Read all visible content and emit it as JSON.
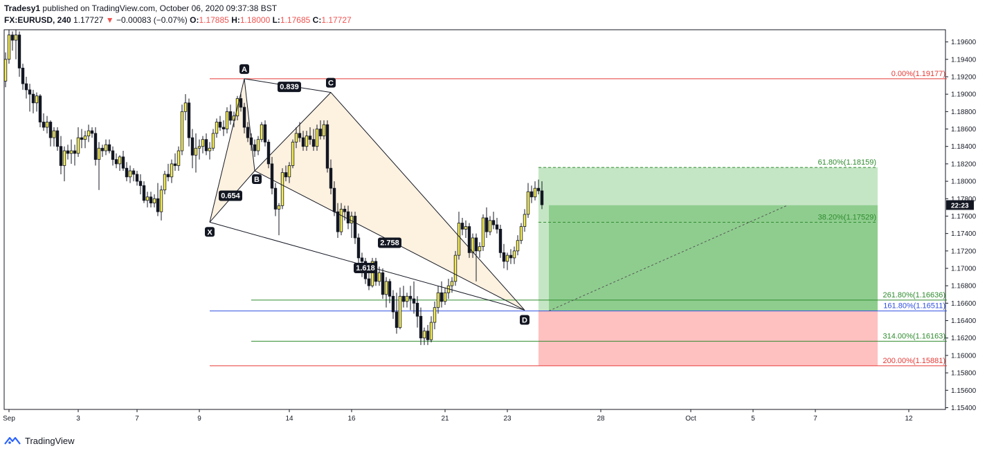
{
  "header": {
    "publisher": "Tradesy1",
    "published_text": "published on TradingView.com, October 06, 2020 09:37:38 BST",
    "symbol": "FX:EURUSD, 240",
    "last": "1.17727",
    "change": "−0.00083 (−0.07%)",
    "o_label": "O:",
    "o": "1.17885",
    "h_label": "H:",
    "h": "1.18000",
    "l_label": "L:",
    "l": "1.17685",
    "c_label": "C:",
    "c": "1.17727"
  },
  "footer": {
    "brand": "TradingView"
  },
  "colors": {
    "bull": "#f6ee55",
    "bear": "#131722",
    "pattern_fill": "#fdf1e0",
    "profit": "#8fcd8f",
    "profit_light": "#c5e6c5",
    "loss": "#ffc0c0",
    "fib_red": "#e53935",
    "fib_green": "#2e8b2e",
    "fib_blue": "#3050e0"
  },
  "chart_data": {
    "type": "candlestick",
    "ylim": [
      1.1538,
      1.1974
    ],
    "y_ticks": [
      "1.19600",
      "1.19400",
      "1.19200",
      "1.19000",
      "1.18800",
      "1.18600",
      "1.18400",
      "1.18200",
      "1.18000",
      "1.17800",
      "1.17600",
      "1.17400",
      "1.17200",
      "1.17000",
      "1.16800",
      "1.16600",
      "1.16400",
      "1.16200",
      "1.16000",
      "1.15800",
      "1.15600",
      "1.15400"
    ],
    "x_ticks": [
      {
        "label": "Sep",
        "bar": 1
      },
      {
        "label": "3",
        "bar": 21
      },
      {
        "label": "7",
        "bar": 38
      },
      {
        "label": "9",
        "bar": 56
      },
      {
        "label": "14",
        "bar": 82
      },
      {
        "label": "16",
        "bar": 100
      },
      {
        "label": "21",
        "bar": 127
      },
      {
        "label": "23",
        "bar": 145
      },
      {
        "label": "28",
        "bar": 172
      },
      {
        "label": "Oct",
        "bar": 198
      },
      {
        "label": "5",
        "bar": 216
      },
      {
        "label": "7",
        "bar": 234
      },
      {
        "label": "12",
        "bar": 261
      }
    ],
    "current_price_label": "22:23",
    "current_price": 1.17727,
    "fib_levels": [
      {
        "label": "0.00%(1.19177)",
        "price": 1.19177,
        "color": "red",
        "x0": 59,
        "x1": 272,
        "style": "solid"
      },
      {
        "label": "61.80%(1.18159)",
        "price": 1.18159,
        "color": "green",
        "x0": 154,
        "x1": 252,
        "style": "dashed"
      },
      {
        "label": "38.20%(1.17529)",
        "price": 1.17529,
        "color": "green",
        "x0": 154,
        "x1": 252,
        "style": "dashed"
      },
      {
        "label": "261.80%(1.16636)",
        "price": 1.16636,
        "color": "green",
        "x0": 71,
        "x1": 272,
        "style": "solid"
      },
      {
        "label": "161.80%(1.16511)",
        "price": 1.16511,
        "color": "blue",
        "x0": 59,
        "x1": 272,
        "style": "solid"
      },
      {
        "label": "314.00%(1.16163)",
        "price": 1.16163,
        "color": "green",
        "x0": 71,
        "x1": 272,
        "style": "solid"
      },
      {
        "label": "200.00%(1.15881)",
        "price": 1.15881,
        "color": "red",
        "x0": 59,
        "x1": 272,
        "style": "solid"
      }
    ],
    "position": {
      "x0": 154,
      "x1": 252,
      "entry": 1.16511,
      "target": 1.18159,
      "stop": 1.15881,
      "mid": 1.17725,
      "entry_bar": 157
    },
    "pattern_points": [
      {
        "label": "X",
        "bar": 59,
        "price": 1.1753
      },
      {
        "label": "A",
        "bar": 69,
        "price": 1.19177
      },
      {
        "label": "B",
        "bar": 72,
        "price": 1.1812
      },
      {
        "label": "C",
        "bar": 94,
        "price": 1.1902
      },
      {
        "label": "D",
        "bar": 150,
        "price": 1.1652
      }
    ],
    "ratios": [
      {
        "label": "0.839",
        "bar": 82,
        "price": 1.1908
      },
      {
        "label": "0.654",
        "bar": 65,
        "price": 1.1783
      },
      {
        "label": "2.758",
        "bar": 111,
        "price": 1.1729
      },
      {
        "label": "1.618",
        "bar": 104,
        "price": 1.17
      }
    ],
    "candles": [
      [
        1.1915,
        1.1948,
        1.1908,
        1.194
      ],
      [
        1.194,
        1.1974,
        1.1935,
        1.1968
      ],
      [
        1.1968,
        1.1972,
        1.195,
        1.1962
      ],
      [
        1.1962,
        1.1974,
        1.194,
        1.1968
      ],
      [
        1.1968,
        1.1972,
        1.192,
        1.193
      ],
      [
        1.193,
        1.1935,
        1.1905,
        1.1912
      ],
      [
        1.1912,
        1.192,
        1.1895,
        1.1905
      ],
      [
        1.1905,
        1.1912,
        1.188,
        1.19
      ],
      [
        1.19,
        1.1905,
        1.1878,
        1.189
      ],
      [
        1.189,
        1.1902,
        1.188,
        1.1898
      ],
      [
        1.1898,
        1.19,
        1.1862,
        1.1868
      ],
      [
        1.1868,
        1.1878,
        1.1858,
        1.1862
      ],
      [
        1.1862,
        1.1875,
        1.1855,
        1.1868
      ],
      [
        1.1868,
        1.187,
        1.184,
        1.185
      ],
      [
        1.185,
        1.1862,
        1.184,
        1.1858
      ],
      [
        1.1858,
        1.1862,
        1.1835,
        1.184
      ],
      [
        1.184,
        1.1852,
        1.1808,
        1.1818
      ],
      [
        1.1818,
        1.184,
        1.18,
        1.1835
      ],
      [
        1.1835,
        1.1842,
        1.1825,
        1.1832
      ],
      [
        1.1832,
        1.1848,
        1.182,
        1.1835
      ],
      [
        1.1835,
        1.1842,
        1.1818,
        1.1832
      ],
      [
        1.1832,
        1.1862,
        1.1828,
        1.185
      ],
      [
        1.185,
        1.186,
        1.1838,
        1.1848
      ],
      [
        1.1848,
        1.1858,
        1.1838,
        1.1852
      ],
      [
        1.1852,
        1.1865,
        1.1845,
        1.1858
      ],
      [
        1.1858,
        1.1862,
        1.185,
        1.1855
      ],
      [
        1.1855,
        1.1862,
        1.1818,
        1.1825
      ],
      [
        1.1825,
        1.1845,
        1.179,
        1.1838
      ],
      [
        1.1838,
        1.1842,
        1.1828,
        1.1835
      ],
      [
        1.1835,
        1.1848,
        1.183,
        1.1842
      ],
      [
        1.1842,
        1.1848,
        1.1832,
        1.1835
      ],
      [
        1.1835,
        1.184,
        1.1818,
        1.1825
      ],
      [
        1.1825,
        1.1832,
        1.1815,
        1.182
      ],
      [
        1.182,
        1.183,
        1.1812,
        1.1828
      ],
      [
        1.1828,
        1.1835,
        1.1812,
        1.1815
      ],
      [
        1.1815,
        1.1822,
        1.18,
        1.1805
      ],
      [
        1.1805,
        1.1818,
        1.1798,
        1.1812
      ],
      [
        1.1812,
        1.1815,
        1.18,
        1.1808
      ],
      [
        1.1808,
        1.1812,
        1.1795,
        1.18
      ],
      [
        1.18,
        1.1808,
        1.1785,
        1.1795
      ],
      [
        1.1795,
        1.18,
        1.1775,
        1.1778
      ],
      [
        1.1778,
        1.1788,
        1.177,
        1.1782
      ],
      [
        1.1782,
        1.1788,
        1.177,
        1.1775
      ],
      [
        1.1775,
        1.1785,
        1.177,
        1.178
      ],
      [
        1.178,
        1.1798,
        1.176,
        1.1765
      ],
      [
        1.1765,
        1.1795,
        1.1755,
        1.179
      ],
      [
        1.179,
        1.1812,
        1.1785,
        1.1808
      ],
      [
        1.1808,
        1.182,
        1.18,
        1.1805
      ],
      [
        1.1805,
        1.1825,
        1.1798,
        1.182
      ],
      [
        1.182,
        1.1832,
        1.1812,
        1.1818
      ],
      [
        1.1818,
        1.184,
        1.1812,
        1.1835
      ],
      [
        1.1835,
        1.1888,
        1.183,
        1.188
      ],
      [
        1.188,
        1.19,
        1.187,
        1.189
      ],
      [
        1.189,
        1.1895,
        1.184,
        1.185
      ],
      [
        1.185,
        1.186,
        1.1815,
        1.183
      ],
      [
        1.183,
        1.1855,
        1.181,
        1.1838
      ],
      [
        1.1838,
        1.1848,
        1.1825,
        1.184
      ],
      [
        1.184,
        1.1852,
        1.1832,
        1.1848
      ],
      [
        1.1848,
        1.1855,
        1.183,
        1.1835
      ],
      [
        1.1835,
        1.1845,
        1.1825,
        1.1838
      ],
      [
        1.1838,
        1.186,
        1.1835,
        1.1855
      ],
      [
        1.1855,
        1.1872,
        1.185,
        1.1868
      ],
      [
        1.1868,
        1.1875,
        1.1858,
        1.1862
      ],
      [
        1.1862,
        1.187,
        1.1852,
        1.186
      ],
      [
        1.186,
        1.1885,
        1.1855,
        1.188
      ],
      [
        1.188,
        1.1888,
        1.1865,
        1.187
      ],
      [
        1.187,
        1.188,
        1.1862,
        1.1875
      ],
      [
        1.1875,
        1.1898,
        1.187,
        1.1895
      ],
      [
        1.1895,
        1.1902,
        1.188,
        1.1885
      ],
      [
        1.1885,
        1.189,
        1.1855,
        1.1862
      ],
      [
        1.1862,
        1.1868,
        1.1845,
        1.185
      ],
      [
        1.185,
        1.1855,
        1.1835,
        1.1842
      ],
      [
        1.1842,
        1.1848,
        1.1828,
        1.1835
      ],
      [
        1.1835,
        1.1852,
        1.183,
        1.1848
      ],
      [
        1.1848,
        1.1868,
        1.1845,
        1.1865
      ],
      [
        1.1865,
        1.187,
        1.184,
        1.1845
      ],
      [
        1.1845,
        1.1848,
        1.1815,
        1.182
      ],
      [
        1.182,
        1.1828,
        1.1785,
        1.1792
      ],
      [
        1.1792,
        1.1798,
        1.176,
        1.1768
      ],
      [
        1.1768,
        1.1775,
        1.1738,
        1.1772
      ],
      [
        1.1772,
        1.1815,
        1.1768,
        1.181
      ],
      [
        1.181,
        1.1818,
        1.18,
        1.1805
      ],
      [
        1.1805,
        1.1822,
        1.1798,
        1.1818
      ],
      [
        1.1818,
        1.1848,
        1.1815,
        1.1845
      ],
      [
        1.1845,
        1.1862,
        1.1838,
        1.1855
      ],
      [
        1.1855,
        1.1868,
        1.1845,
        1.185
      ],
      [
        1.185,
        1.1858,
        1.1835,
        1.184
      ],
      [
        1.184,
        1.1858,
        1.1835,
        1.1852
      ],
      [
        1.1852,
        1.1862,
        1.1842,
        1.1848
      ],
      [
        1.1848,
        1.186,
        1.1835,
        1.184
      ],
      [
        1.184,
        1.1865,
        1.1835,
        1.186
      ],
      [
        1.186,
        1.187,
        1.1848,
        1.1852
      ],
      [
        1.1852,
        1.187,
        1.1848,
        1.1865
      ],
      [
        1.1865,
        1.187,
        1.181,
        1.1815
      ],
      [
        1.1815,
        1.1825,
        1.1785,
        1.1792
      ],
      [
        1.1792,
        1.18,
        1.176,
        1.1765
      ],
      [
        1.1765,
        1.1775,
        1.1735,
        1.1742
      ],
      [
        1.1742,
        1.1775,
        1.1738,
        1.1768
      ],
      [
        1.1768,
        1.1772,
        1.1755,
        1.1765
      ],
      [
        1.1765,
        1.1772,
        1.1745,
        1.1752
      ],
      [
        1.1752,
        1.1765,
        1.1735,
        1.176
      ],
      [
        1.176,
        1.1765,
        1.1728,
        1.1735
      ],
      [
        1.1735,
        1.174,
        1.17,
        1.1712
      ],
      [
        1.1712,
        1.1718,
        1.169,
        1.1708
      ],
      [
        1.1708,
        1.1712,
        1.1682,
        1.1688
      ],
      [
        1.1688,
        1.1695,
        1.1675,
        1.168
      ],
      [
        1.168,
        1.1712,
        1.1678,
        1.1708
      ],
      [
        1.1708,
        1.1712,
        1.168,
        1.1685
      ],
      [
        1.1685,
        1.1702,
        1.168,
        1.1695
      ],
      [
        1.1695,
        1.17,
        1.1665,
        1.167
      ],
      [
        1.167,
        1.169,
        1.1655,
        1.1685
      ],
      [
        1.1685,
        1.1688,
        1.166,
        1.1668
      ],
      [
        1.1668,
        1.1675,
        1.1642,
        1.165
      ],
      [
        1.165,
        1.1672,
        1.1625,
        1.1632
      ],
      [
        1.1632,
        1.1678,
        1.163,
        1.1668
      ],
      [
        1.1668,
        1.168,
        1.1655,
        1.1662
      ],
      [
        1.1662,
        1.1672,
        1.1655,
        1.1668
      ],
      [
        1.1668,
        1.168,
        1.1652,
        1.1665
      ],
      [
        1.1665,
        1.1685,
        1.1648,
        1.166
      ],
      [
        1.166,
        1.1668,
        1.1632,
        1.1645
      ],
      [
        1.1645,
        1.1655,
        1.1612,
        1.162
      ],
      [
        1.162,
        1.1632,
        1.1612,
        1.1628
      ],
      [
        1.1628,
        1.1635,
        1.1612,
        1.1618
      ],
      [
        1.1618,
        1.1645,
        1.1615,
        1.1638
      ],
      [
        1.1638,
        1.1662,
        1.163,
        1.1655
      ],
      [
        1.1655,
        1.168,
        1.1648,
        1.1672
      ],
      [
        1.1672,
        1.1685,
        1.1655,
        1.1662
      ],
      [
        1.1662,
        1.1678,
        1.1658,
        1.1672
      ],
      [
        1.1672,
        1.1688,
        1.1665,
        1.168
      ],
      [
        1.168,
        1.169,
        1.1672,
        1.1685
      ],
      [
        1.1685,
        1.172,
        1.168,
        1.1715
      ],
      [
        1.1715,
        1.1765,
        1.171,
        1.1752
      ],
      [
        1.1752,
        1.1758,
        1.1738,
        1.1745
      ],
      [
        1.1745,
        1.1755,
        1.1735,
        1.1748
      ],
      [
        1.1748,
        1.1752,
        1.1712,
        1.1718
      ],
      [
        1.1718,
        1.174,
        1.1712,
        1.1735
      ],
      [
        1.1735,
        1.174,
        1.1685,
        1.172
      ],
      [
        1.172,
        1.173,
        1.1712,
        1.1725
      ],
      [
        1.1725,
        1.1762,
        1.172,
        1.1758
      ],
      [
        1.1758,
        1.177,
        1.1735,
        1.1742
      ],
      [
        1.1742,
        1.176,
        1.1738,
        1.1755
      ],
      [
        1.1755,
        1.1765,
        1.1745,
        1.175
      ],
      [
        1.175,
        1.1758,
        1.174,
        1.1745
      ],
      [
        1.1745,
        1.175,
        1.1712,
        1.1718
      ],
      [
        1.1718,
        1.1728,
        1.17,
        1.1708
      ],
      [
        1.1708,
        1.1718,
        1.1698,
        1.1715
      ],
      [
        1.1715,
        1.1722,
        1.1705,
        1.1712
      ],
      [
        1.1712,
        1.1725,
        1.1705,
        1.172
      ],
      [
        1.172,
        1.1738,
        1.1715,
        1.1732
      ],
      [
        1.1732,
        1.1752,
        1.1728,
        1.1748
      ],
      [
        1.1748,
        1.1768,
        1.1742,
        1.1762
      ],
      [
        1.1762,
        1.1798,
        1.1758,
        1.1788
      ],
      [
        1.1788,
        1.1795,
        1.1775,
        1.1782
      ],
      [
        1.1782,
        1.18,
        1.1778,
        1.1792
      ],
      [
        1.1792,
        1.1802,
        1.1785,
        1.1789
      ],
      [
        1.1789,
        1.18,
        1.1768,
        1.1773
      ]
    ]
  }
}
